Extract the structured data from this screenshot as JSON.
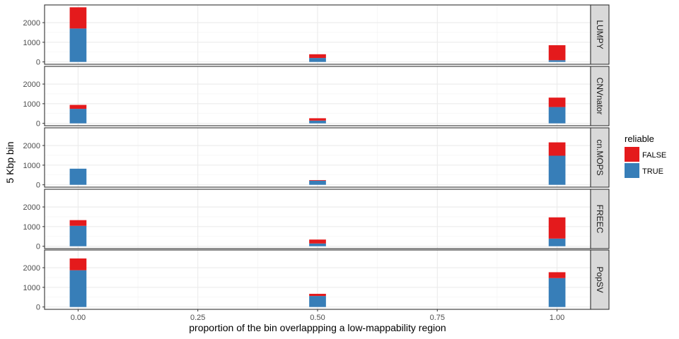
{
  "chart_data": {
    "type": "bar",
    "stacked": true,
    "facet_direction": "rows",
    "xlabel": "proportion of the bin overlappping a low-mappability region",
    "ylabel": "5 Kbp bin",
    "xlim": [
      -0.07,
      1.07
    ],
    "ylim": [
      -120,
      2900
    ],
    "x_ticks": [
      0.0,
      0.25,
      0.5,
      0.75,
      1.0
    ],
    "x_tick_labels": [
      "0.00",
      "0.25",
      "0.50",
      "0.75",
      "1.00"
    ],
    "y_ticks": [
      0,
      1000,
      2000
    ],
    "y_tick_labels": [
      "0",
      "1000",
      "2000"
    ],
    "bar_width": 0.035,
    "grid": true,
    "legend": {
      "title": "reliable",
      "position": "right",
      "entries": [
        {
          "label": "FALSE",
          "color": "#E41A1C"
        },
        {
          "label": "TRUE",
          "color": "#377EB8"
        }
      ]
    },
    "panels": [
      {
        "strip": "LUMPY",
        "x": [
          0.0,
          0.5,
          1.0
        ],
        "series": [
          {
            "name": "TRUE",
            "color": "#377EB8",
            "values": [
              1700,
              200,
              90
            ]
          },
          {
            "name": "FALSE",
            "color": "#E41A1C",
            "values": [
              1080,
              190,
              760
            ]
          }
        ]
      },
      {
        "strip": "CNVnator",
        "x": [
          0.0,
          0.5,
          1.0
        ],
        "series": [
          {
            "name": "TRUE",
            "color": "#377EB8",
            "values": [
              740,
              140,
              830
            ]
          },
          {
            "name": "FALSE",
            "color": "#E41A1C",
            "values": [
              200,
              120,
              480
            ]
          }
        ]
      },
      {
        "strip": "cn.MOPS",
        "x": [
          0.0,
          0.5,
          1.0
        ],
        "series": [
          {
            "name": "TRUE",
            "color": "#377EB8",
            "values": [
              820,
              210,
              1480
            ]
          },
          {
            "name": "FALSE",
            "color": "#E41A1C",
            "values": [
              0,
              30,
              680
            ]
          }
        ]
      },
      {
        "strip": "FREEC",
        "x": [
          0.0,
          0.5,
          1.0
        ],
        "series": [
          {
            "name": "TRUE",
            "color": "#377EB8",
            "values": [
              1040,
              140,
              390
            ]
          },
          {
            "name": "FALSE",
            "color": "#E41A1C",
            "values": [
              290,
              200,
              1080
            ]
          }
        ]
      },
      {
        "strip": "PopSV",
        "x": [
          0.0,
          0.5,
          1.0
        ],
        "series": [
          {
            "name": "TRUE",
            "color": "#377EB8",
            "values": [
              1870,
              560,
              1470
            ]
          },
          {
            "name": "FALSE",
            "color": "#E41A1C",
            "values": [
              600,
              110,
              300
            ]
          }
        ]
      }
    ]
  }
}
